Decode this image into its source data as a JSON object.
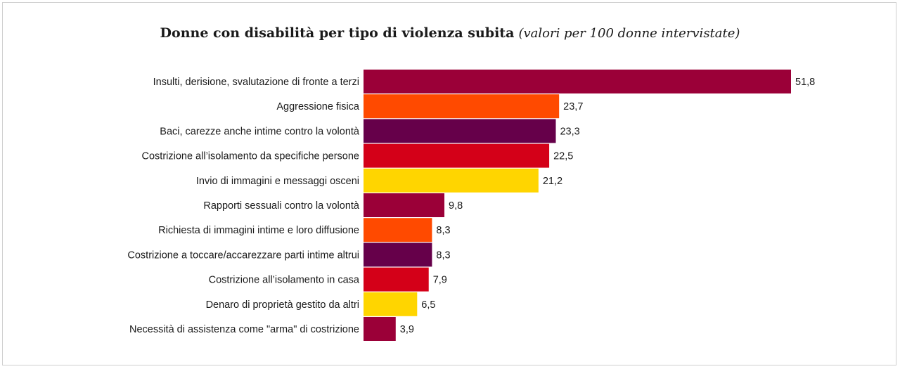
{
  "chart_data": {
    "type": "bar",
    "orientation": "horizontal",
    "title": "Donne con disabilità per tipo di violenza subita",
    "subtitle": "(valori per 100 donne intervistate)",
    "categories": [
      "Insulti, derisione, svalutazione di fronte a terzi",
      "Aggressione fisica",
      "Baci, carezze anche intime contro la volontà",
      "Costrizione all’isolamento da specifiche persone",
      "Invio di immagini e messaggi osceni",
      "Rapporti sessuali contro la volontà",
      "Richiesta di immagini intime e loro diffusione",
      "Costrizione a toccare/accarezzare parti intime altrui",
      "Costrizione all’isolamento in casa",
      "Denaro di proprietà gestito da altri",
      "Necessità di assistenza come \"arma\" di costrizione"
    ],
    "values": [
      51.8,
      23.7,
      23.3,
      22.5,
      21.2,
      9.8,
      8.3,
      8.3,
      7.9,
      6.5,
      3.9
    ],
    "value_labels": [
      "51,8",
      "23,7",
      "23,3",
      "22,5",
      "21,2",
      "9,8",
      "8,3",
      "8,3",
      "7,9",
      "6,5",
      "3,9"
    ],
    "colors": [
      "#9b0038",
      "#ff4a00",
      "#66004a",
      "#d40018",
      "#ffd500",
      "#9b0038",
      "#ff4a00",
      "#66004a",
      "#d40018",
      "#ffd500",
      "#9b0038"
    ],
    "xlim": [
      0,
      51.8
    ],
    "grid": false,
    "legend": "none"
  }
}
